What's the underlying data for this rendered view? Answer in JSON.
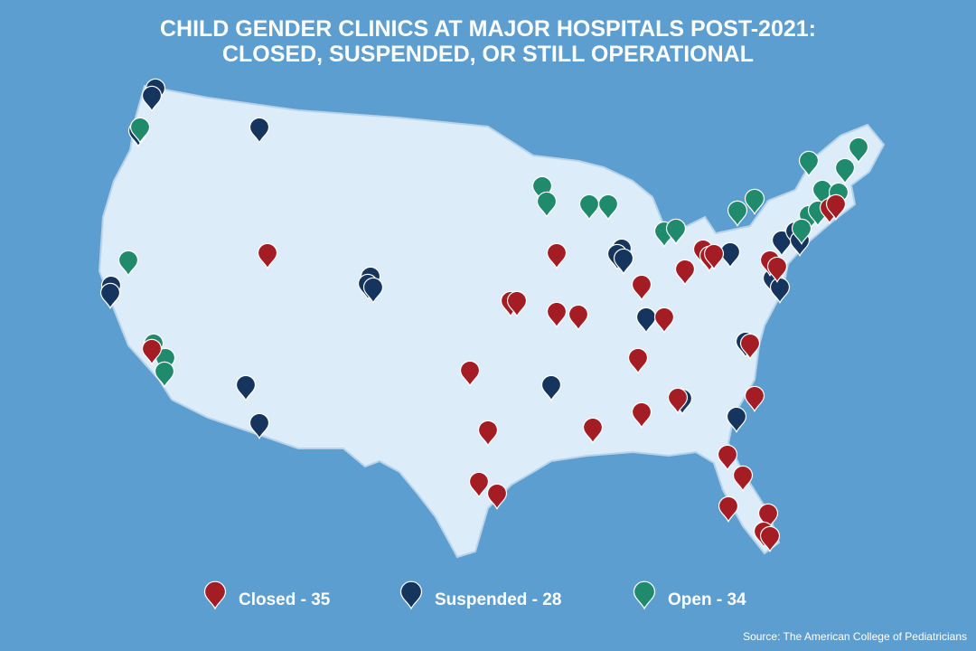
{
  "header": {
    "title_lines": [
      "CHILD GENDER CLINICS AT MAJOR HOSPITALS POST-2021:",
      "CLOSED, SUSPENDED, OR STILL OPERATIONAL"
    ]
  },
  "legend": [
    {
      "label": "Closed - 35",
      "color": "#a51d24"
    },
    {
      "label": "Suspended - 28",
      "color": "#15355e"
    },
    {
      "label": "Open - 34",
      "color": "#1f8a6c"
    }
  ],
  "source": "Source: The American College of Pediatricians"
}
